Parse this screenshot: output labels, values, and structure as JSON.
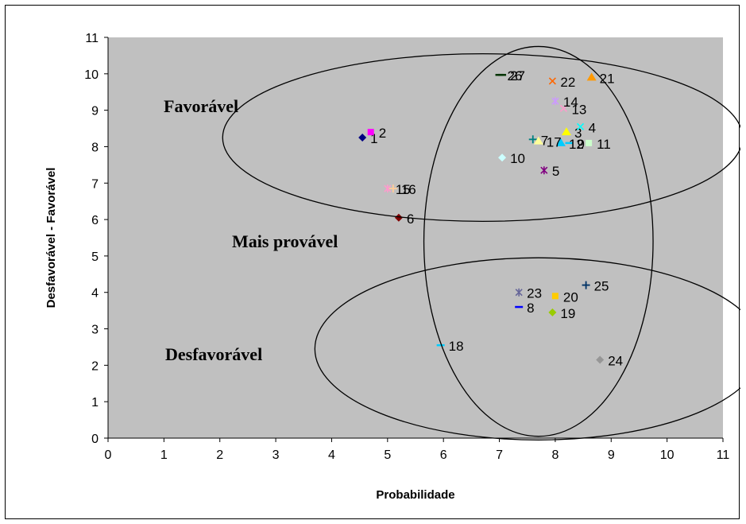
{
  "chart_data": {
    "type": "scatter",
    "xlabel": "Probabilidade",
    "ylabel": "Desfavorável - Favorável",
    "xlim": [
      0,
      11
    ],
    "ylim": [
      0,
      11
    ],
    "x_ticks": [
      "0",
      "1",
      "2",
      "3",
      "4",
      "5",
      "6",
      "7",
      "8",
      "9",
      "10",
      "11"
    ],
    "y_ticks": [
      "0",
      "1",
      "2",
      "3",
      "4",
      "5",
      "6",
      "7",
      "8",
      "9",
      "10",
      "11"
    ],
    "grid": false,
    "plot_background": "#c0c0c0",
    "points": [
      {
        "label": "1",
        "x": 4.55,
        "y": 8.25,
        "marker": "diamond",
        "color": "#000080"
      },
      {
        "label": "2",
        "x": 4.7,
        "y": 8.4,
        "marker": "square",
        "color": "#ff00ff"
      },
      {
        "label": "3",
        "x": 8.2,
        "y": 8.4,
        "marker": "triangle",
        "color": "#ffff00"
      },
      {
        "label": "4",
        "x": 8.45,
        "y": 8.55,
        "marker": "x",
        "color": "#00ffff"
      },
      {
        "label": "5",
        "x": 7.8,
        "y": 7.35,
        "marker": "star",
        "color": "#800080"
      },
      {
        "label": "6",
        "x": 5.2,
        "y": 6.05,
        "marker": "diamond",
        "color": "#800000"
      },
      {
        "label": "7",
        "x": 7.6,
        "y": 8.2,
        "marker": "plus",
        "color": "#008080"
      },
      {
        "label": "8",
        "x": 7.35,
        "y": 3.6,
        "marker": "dash",
        "color": "#0000ff"
      },
      {
        "label": "9",
        "x": 8.25,
        "y": 8.1,
        "marker": "dash",
        "color": "#00ccff"
      },
      {
        "label": "10",
        "x": 7.05,
        "y": 7.7,
        "marker": "diamond",
        "color": "#ccffff"
      },
      {
        "label": "11",
        "x": 8.6,
        "y": 8.1,
        "marker": "square",
        "color": "#ccffcc"
      },
      {
        "label": "12",
        "x": 8.1,
        "y": 8.1,
        "marker": "triangle",
        "color": "#00ccff"
      },
      {
        "label": "13",
        "x": 8.15,
        "y": 9.05,
        "marker": "x",
        "color": "#ff99cc"
      },
      {
        "label": "14",
        "x": 8.0,
        "y": 9.25,
        "marker": "star",
        "color": "#cc99ff"
      },
      {
        "label": "15",
        "x": 5.0,
        "y": 6.85,
        "marker": "star",
        "color": "#ff99cc"
      },
      {
        "label": "16",
        "x": 5.1,
        "y": 6.85,
        "marker": "plus",
        "color": "#ffcc99"
      },
      {
        "label": "17",
        "x": 7.7,
        "y": 8.15,
        "marker": "triangle",
        "color": "#ffff99"
      },
      {
        "label": "18",
        "x": 5.95,
        "y": 2.55,
        "marker": "dash",
        "color": "#00ccff"
      },
      {
        "label": "19",
        "x": 7.95,
        "y": 3.45,
        "marker": "diamond",
        "color": "#99cc00"
      },
      {
        "label": "20",
        "x": 8.0,
        "y": 3.9,
        "marker": "square",
        "color": "#ffcc00"
      },
      {
        "label": "21",
        "x": 8.65,
        "y": 9.9,
        "marker": "triangle",
        "color": "#ff9900"
      },
      {
        "label": "22",
        "x": 7.95,
        "y": 9.8,
        "marker": "x",
        "color": "#ff6600"
      },
      {
        "label": "23",
        "x": 7.35,
        "y": 4.0,
        "marker": "star",
        "color": "#666699"
      },
      {
        "label": "24",
        "x": 8.8,
        "y": 2.15,
        "marker": "diamond",
        "color": "#969696"
      },
      {
        "label": "25",
        "x": 8.55,
        "y": 4.2,
        "marker": "plus",
        "color": "#003366"
      },
      {
        "label": "26",
        "x": 7.0,
        "y": 9.97,
        "marker": "dash",
        "color": "#003300"
      },
      {
        "label": "27",
        "x": 7.05,
        "y": 9.97,
        "marker": "dash",
        "color": "#003300"
      }
    ],
    "annotations": [
      {
        "text": "Favorável"
      },
      {
        "text": "Mais provável"
      },
      {
        "text": "Desfavorável"
      }
    ],
    "ellipses": [
      {
        "name": "favoravel",
        "cx": 6.7,
        "cy": 8.25,
        "rx": 4.65,
        "ry": 2.3
      },
      {
        "name": "mais-provavel",
        "cx": 7.7,
        "cy": 5.4,
        "rx": 2.05,
        "ry": 5.35
      },
      {
        "name": "desfavoravel",
        "cx": 7.7,
        "cy": 2.45,
        "rx": 4.0,
        "ry": 2.5
      }
    ]
  }
}
